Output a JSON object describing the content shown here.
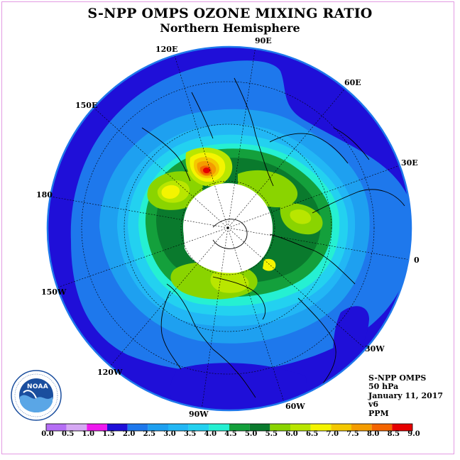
{
  "title": "S-NPP OMPS OZONE MIXING RATIO",
  "subtitle": "Northern Hemisphere",
  "longitude_labels": [
    "90E",
    "60E",
    "30E",
    "0",
    "30W",
    "60W",
    "90W",
    "120W",
    "150W",
    "180",
    "150E",
    "120E"
  ],
  "info": {
    "instrument": "S-NPP OMPS",
    "pressure": "50 hPa",
    "date": "January 11, 2017",
    "version": "v6",
    "units": "PPM"
  },
  "logo": {
    "text": "NOAA",
    "icon": "noaa-logo"
  },
  "colorbar": {
    "ticks": [
      "0.0",
      "0.5",
      "1.0",
      "1.5",
      "2.0",
      "2.5",
      "3.0",
      "3.5",
      "4.0",
      "4.5",
      "5.0",
      "5.5",
      "6.0",
      "6.5",
      "7.0",
      "7.5",
      "8.0",
      "8.5",
      "9.0"
    ],
    "colors": [
      "#b56ef5",
      "#d6a8f4",
      "#ee19ee",
      "#1f0fd8",
      "#1e78ec",
      "#1ea0f0",
      "#22b7f5",
      "#23d1f0",
      "#25f0d2",
      "#14a03c",
      "#0a7a2d",
      "#8ad400",
      "#b9e600",
      "#f4f400",
      "#f4c800",
      "#f49c00",
      "#f46400",
      "#e60000",
      "#8b5a3c"
    ]
  }
}
